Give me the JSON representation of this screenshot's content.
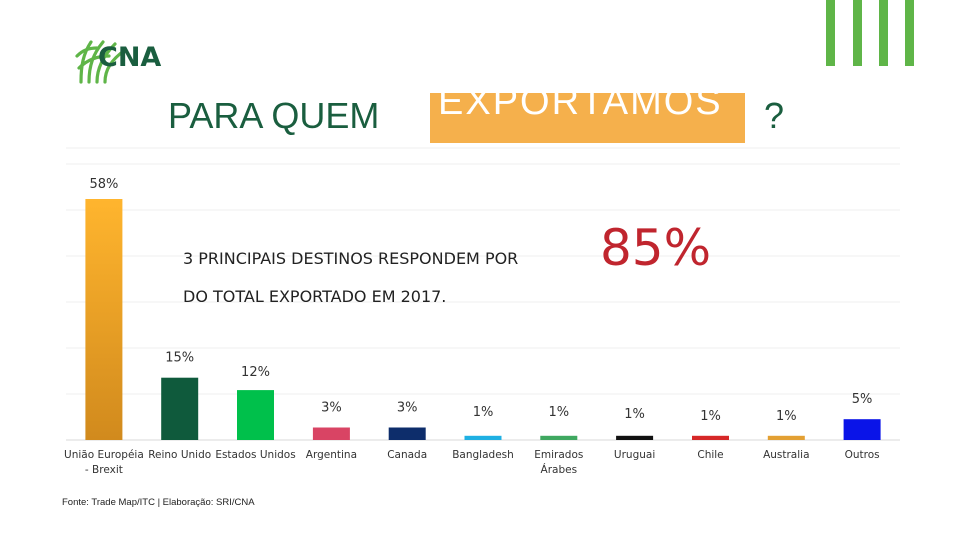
{
  "header": {
    "logo_text": "CNA",
    "title_before": "PARA QUEM",
    "title_highlight": "EXPORTAMOS",
    "title_after": "?"
  },
  "callout": {
    "line1": "3 PRINCIPAIS DESTINOS RESPONDEM POR",
    "highlight": "85%",
    "line2": "DO TOTAL EXPORTADO EM 2017."
  },
  "footer": {
    "source": "Fonte: Trade Map/ITC | Elaboração: SRI/CNA"
  },
  "colors": {
    "brand_green": "#1a5e3f",
    "deco_green": "#5fb548",
    "title_box": "#f5b04c",
    "highlight_red": "#c0252e"
  },
  "chart_data": {
    "type": "bar",
    "categories": [
      "União Européia - Brexit",
      "Reino Unido",
      "Estados Unidos",
      "Argentina",
      "Canada",
      "Bangladesh",
      "Emirados Árabes",
      "Uruguai",
      "Chile",
      "Australia",
      "Outros"
    ],
    "values": [
      58,
      15,
      12,
      3,
      3,
      1,
      1,
      1,
      1,
      1,
      5
    ],
    "data_labels": [
      "58%",
      "15%",
      "12%",
      "3%",
      "3%",
      "1%",
      "1%",
      "1%",
      "1%",
      "1%",
      "5%"
    ],
    "colors": [
      "#f0a526",
      "#0f5a3c",
      "#00c04b",
      "#d94464",
      "#0d2d6b",
      "#1fb0e3",
      "#3fa860",
      "#111111",
      "#d62828",
      "#e3a033",
      "#0a14e8"
    ],
    "ylim": [
      0,
      60
    ],
    "grid": true,
    "unit": "%"
  }
}
